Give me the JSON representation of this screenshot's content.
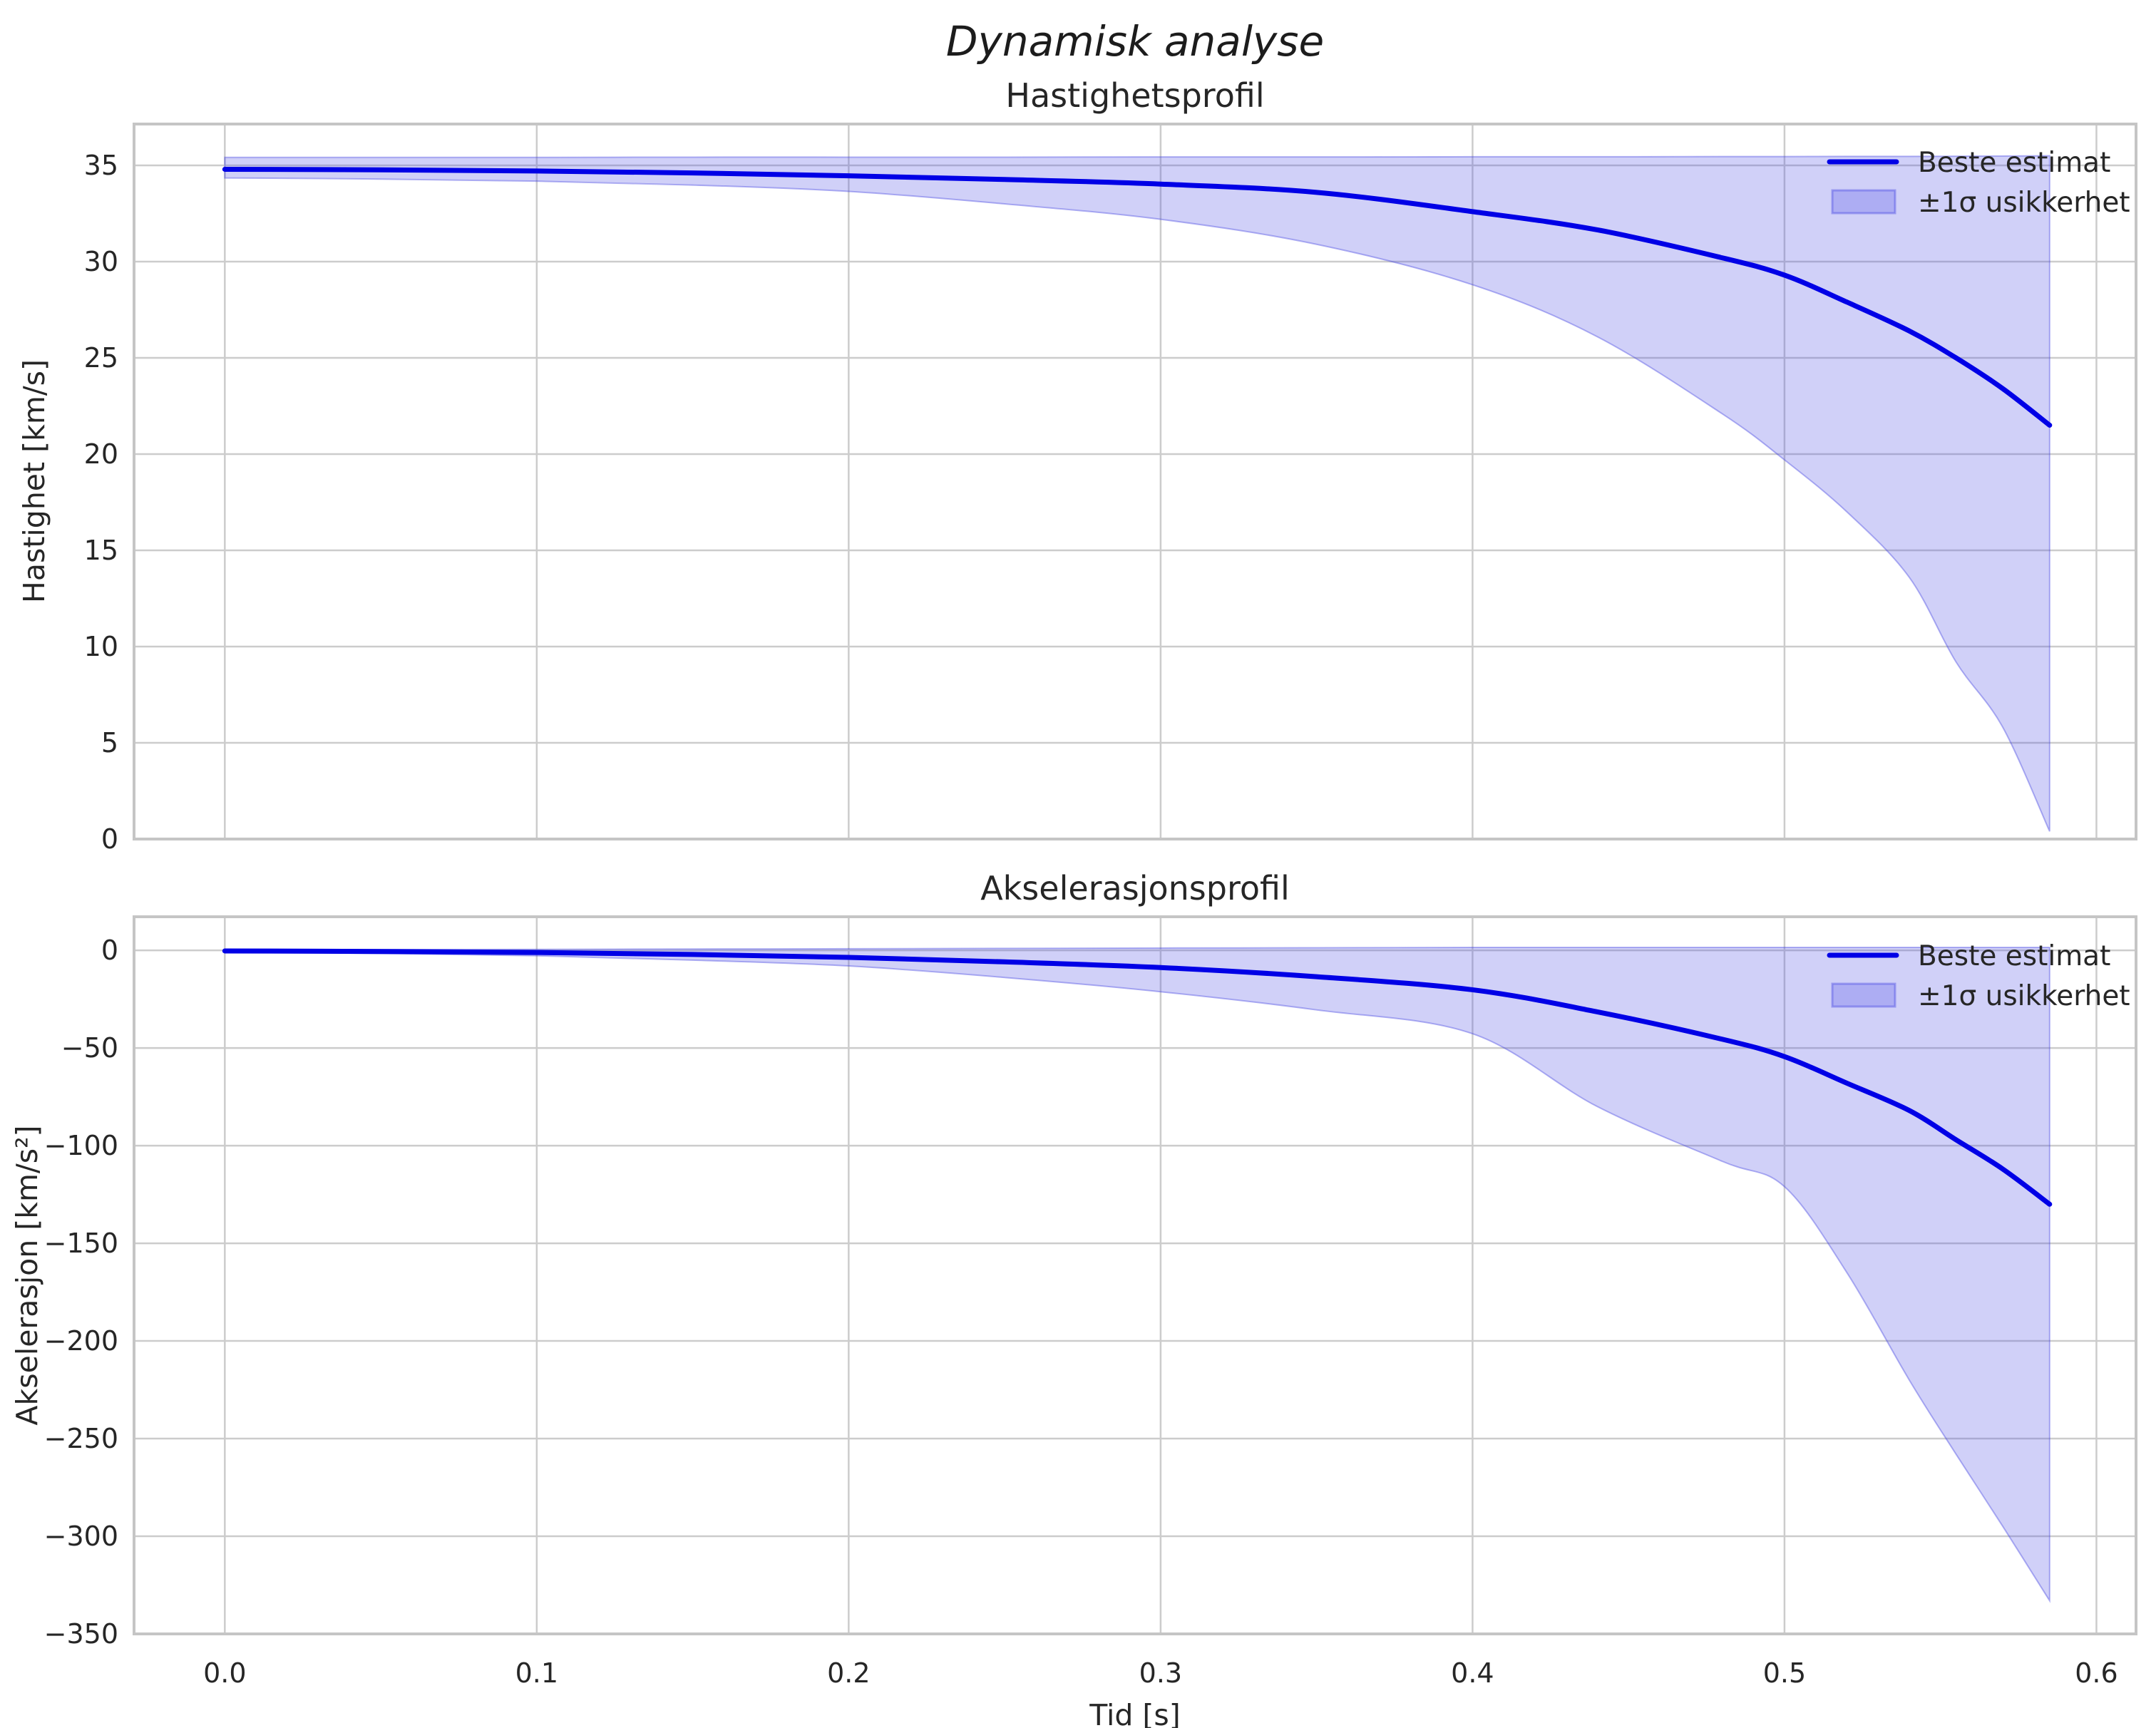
{
  "figure": {
    "title": "Dynamisk analyse"
  },
  "legend": {
    "line_label": "Beste estimat",
    "band_label": "±1σ usikkerhet"
  },
  "colors": {
    "line": "#0000e6",
    "band_fill": "rgba(68,68,226,0.25)",
    "band_edge": "rgba(68,68,226,0.40)",
    "grid": "#cccccc",
    "spine": "#c5c5c5",
    "text": "#262626",
    "title": "#1c1c1c"
  },
  "chart_data": [
    {
      "type": "line",
      "title": "Hastighetsprofil",
      "xlabel": "",
      "ylabel": "Hastighet [km/s]",
      "xlim": [
        -0.0291,
        0.6127
      ],
      "ylim": [
        0,
        37.15
      ],
      "grid": true,
      "legend_position": "upper right",
      "xticks": [
        0.0,
        0.1,
        0.2,
        0.3,
        0.4,
        0.5,
        0.6
      ],
      "xticklabels": [],
      "yticks": [
        0,
        5,
        10,
        15,
        20,
        25,
        30,
        35
      ],
      "yticklabels": [
        "0",
        "5",
        "10",
        "15",
        "20",
        "25",
        "30",
        "35"
      ],
      "x": [
        0,
        0.05,
        0.1,
        0.15,
        0.2,
        0.25,
        0.3,
        0.35,
        0.4,
        0.44,
        0.48,
        0.5,
        0.52,
        0.54,
        0.555,
        0.57,
        0.585
      ],
      "series": [
        {
          "name": "Beste estimat",
          "kind": "line",
          "y": [
            34.8,
            34.77,
            34.71,
            34.61,
            34.46,
            34.27,
            34.03,
            33.6,
            32.6,
            31.65,
            30.2,
            29.3,
            27.9,
            26.4,
            25.0,
            23.4,
            21.5
          ]
        },
        {
          "name": "±1σ usikkerhet",
          "kind": "band",
          "y_upper": [
            35.42,
            35.42,
            35.42,
            35.43,
            35.43,
            35.43,
            35.44,
            35.44,
            35.45,
            35.45,
            35.46,
            35.46,
            35.47,
            35.47,
            35.48,
            35.49,
            35.5
          ],
          "y_lower": [
            34.35,
            34.29,
            34.18,
            33.98,
            33.65,
            33.0,
            32.2,
            30.9,
            28.8,
            26.1,
            22.1,
            19.7,
            17.0,
            13.6,
            9.2,
            5.8,
            0.4
          ]
        }
      ]
    },
    {
      "type": "line",
      "title": "Akselerasjonsprofil",
      "xlabel": "Tid [s]",
      "ylabel": "Akselerasjon [km/s²]",
      "xlim": [
        -0.0291,
        0.6127
      ],
      "ylim": [
        -350,
        17.2
      ],
      "grid": true,
      "legend_position": "upper right",
      "xticks": [
        0.0,
        0.1,
        0.2,
        0.3,
        0.4,
        0.5,
        0.6
      ],
      "xticklabels": [
        "0.0",
        "0.1",
        "0.2",
        "0.3",
        "0.4",
        "0.5",
        "0.6"
      ],
      "yticks": [
        0,
        -50,
        -100,
        -150,
        -200,
        -250,
        -300,
        -350
      ],
      "yticklabels": [
        "0",
        "−50",
        "−100",
        "−150",
        "−200",
        "−250",
        "−300",
        "−350"
      ],
      "x": [
        0,
        0.05,
        0.1,
        0.15,
        0.2,
        0.25,
        0.3,
        0.35,
        0.4,
        0.44,
        0.48,
        0.5,
        0.52,
        0.54,
        0.555,
        0.57,
        0.585
      ],
      "series": [
        {
          "name": "Beste estimat",
          "kind": "line",
          "y": [
            -0.3,
            -0.6,
            -1.1,
            -2.1,
            -3.6,
            -5.9,
            -8.8,
            -13.5,
            -20.2,
            -31.5,
            -45.5,
            -54.4,
            -68,
            -82,
            -97,
            -112,
            -130
          ]
        },
        {
          "name": "±1σ usikkerhet",
          "kind": "band",
          "y_upper": [
            0.3,
            0.4,
            0.5,
            0.7,
            0.8,
            1.0,
            1.2,
            1.3,
            1.5,
            1.5,
            1.5,
            1.5,
            1.5,
            1.5,
            1.5,
            1.5,
            1.5
          ],
          "y_lower": [
            -0.8,
            -1.6,
            -2.8,
            -5.0,
            -8.0,
            -13.9,
            -21.2,
            -30.5,
            -42.7,
            -80,
            -108,
            -121,
            -165,
            -220,
            -258,
            -295,
            -333
          ]
        }
      ]
    }
  ]
}
